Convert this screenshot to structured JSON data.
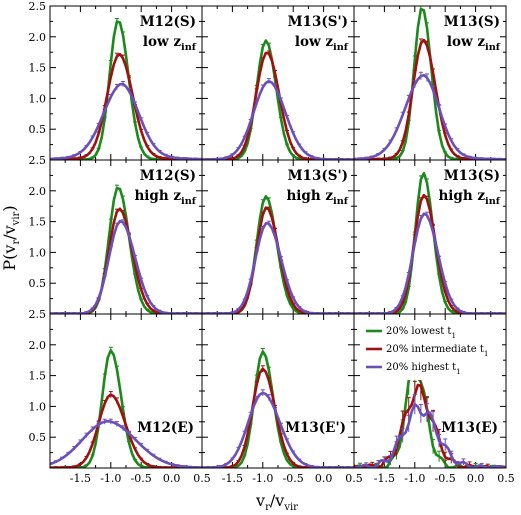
{
  "chart_data": {
    "type": "line",
    "layout": "3x3 grid of panels, shared axes",
    "xlabel": "v_r/v_vir",
    "ylabel": "P(v_r/v_vir)",
    "xlim": [
      -2.0,
      0.5
    ],
    "ylim": [
      0.0,
      2.5
    ],
    "xticks": [
      -1.5,
      -1.0,
      -0.5,
      0.0,
      0.5
    ],
    "yticks": [
      0.5,
      1.0,
      1.5,
      2.0,
      2.5
    ],
    "legend": {
      "placement": "top-right of bottom-right panel",
      "entries": [
        {
          "label": "20% lowest t",
          "sub": "1",
          "color": "#1a8a1a"
        },
        {
          "label": "20% intermediate t",
          "sub": "1",
          "color": "#a01010"
        },
        {
          "label": "20% highest t",
          "sub": "1",
          "color": "#6a50b8"
        }
      ]
    },
    "colors": {
      "lowest": "#1a8a1a",
      "intermediate": "#a01010",
      "highest": "#6a50b8"
    },
    "panels": [
      {
        "row": 0,
        "col": 0,
        "label_lines": [
          {
            "main": "M12(S)",
            "sub": ""
          },
          {
            "main": "low z",
            "sub": "inf"
          }
        ],
        "label_pos": "top",
        "series": [
          {
            "name": "20% lowest t1",
            "peak_x": -0.88,
            "peak_y": 2.25,
            "w_left": 0.14,
            "w_right": 0.17,
            "tail": 0.02,
            "err": 0.05
          },
          {
            "name": "20% intermediate t1",
            "peak_x": -0.86,
            "peak_y": 1.65,
            "w_left": 0.2,
            "w_right": 0.22,
            "tail": 0.07,
            "err": 0.05
          },
          {
            "name": "20% highest t1",
            "peak_x": -0.82,
            "peak_y": 1.12,
            "w_left": 0.3,
            "w_right": 0.28,
            "tail": 0.12,
            "err": 0.04
          }
        ]
      },
      {
        "row": 0,
        "col": 1,
        "label_lines": [
          {
            "main": "M13(S')",
            "sub": ""
          },
          {
            "main": "low z",
            "sub": "inf"
          }
        ],
        "label_pos": "top",
        "series": [
          {
            "name": "20% lowest t1",
            "peak_x": -0.95,
            "peak_y": 1.92,
            "w_left": 0.15,
            "w_right": 0.17,
            "tail": 0.02,
            "err": 0.04
          },
          {
            "name": "20% intermediate t1",
            "peak_x": -0.93,
            "peak_y": 1.72,
            "w_left": 0.18,
            "w_right": 0.2,
            "tail": 0.03,
            "err": 0.04
          },
          {
            "name": "20% highest t1",
            "peak_x": -0.9,
            "peak_y": 1.24,
            "w_left": 0.25,
            "w_right": 0.27,
            "tail": 0.04,
            "err": 0.04
          }
        ]
      },
      {
        "row": 0,
        "col": 2,
        "label_lines": [
          {
            "main": "M13(S)",
            "sub": ""
          },
          {
            "main": "low z",
            "sub": "inf"
          }
        ],
        "label_pos": "top",
        "series": [
          {
            "name": "20% lowest t1",
            "peak_x": -0.88,
            "peak_y": 2.45,
            "w_left": 0.13,
            "w_right": 0.15,
            "tail": 0.03,
            "err": 0.08
          },
          {
            "name": "20% intermediate t1",
            "peak_x": -0.86,
            "peak_y": 1.9,
            "w_left": 0.17,
            "w_right": 0.2,
            "tail": 0.05,
            "err": 0.07
          },
          {
            "name": "20% highest t1",
            "peak_x": -0.86,
            "peak_y": 1.28,
            "w_left": 0.3,
            "w_right": 0.26,
            "tail": 0.1,
            "err": 0.06
          }
        ]
      },
      {
        "row": 1,
        "col": 0,
        "label_lines": [
          {
            "main": "M12(S)",
            "sub": ""
          },
          {
            "main": "high z",
            "sub": "inf"
          }
        ],
        "label_pos": "top",
        "series": [
          {
            "name": "20% lowest t1",
            "peak_x": -0.88,
            "peak_y": 2.05,
            "w_left": 0.15,
            "w_right": 0.18,
            "tail": 0.01,
            "err": 0.05
          },
          {
            "name": "20% intermediate t1",
            "peak_x": -0.86,
            "peak_y": 1.7,
            "w_left": 0.17,
            "w_right": 0.21,
            "tail": 0.01,
            "err": 0.04
          },
          {
            "name": "20% highest t1",
            "peak_x": -0.84,
            "peak_y": 1.5,
            "w_left": 0.19,
            "w_right": 0.24,
            "tail": 0.01,
            "err": 0.04
          }
        ]
      },
      {
        "row": 1,
        "col": 1,
        "label_lines": [
          {
            "main": "M13(S')",
            "sub": ""
          },
          {
            "main": "high z",
            "sub": "inf"
          }
        ],
        "label_pos": "top",
        "series": [
          {
            "name": "20% lowest t1",
            "peak_x": -0.95,
            "peak_y": 1.9,
            "w_left": 0.15,
            "w_right": 0.18,
            "tail": 0.01,
            "err": 0.05
          },
          {
            "name": "20% intermediate t1",
            "peak_x": -0.94,
            "peak_y": 1.72,
            "w_left": 0.16,
            "w_right": 0.2,
            "tail": 0.01,
            "err": 0.04
          },
          {
            "name": "20% highest t1",
            "peak_x": -0.93,
            "peak_y": 1.47,
            "w_left": 0.19,
            "w_right": 0.23,
            "tail": 0.01,
            "err": 0.04
          }
        ]
      },
      {
        "row": 1,
        "col": 2,
        "label_lines": [
          {
            "main": "M13(S)",
            "sub": ""
          },
          {
            "main": "high z",
            "sub": "inf"
          }
        ],
        "label_pos": "top",
        "series": [
          {
            "name": "20% lowest t1",
            "peak_x": -0.86,
            "peak_y": 2.28,
            "w_left": 0.13,
            "w_right": 0.16,
            "tail": 0.01,
            "err": 0.06
          },
          {
            "name": "20% intermediate t1",
            "peak_x": -0.85,
            "peak_y": 1.92,
            "w_left": 0.16,
            "w_right": 0.19,
            "tail": 0.01,
            "err": 0.05
          },
          {
            "name": "20% highest t1",
            "peak_x": -0.84,
            "peak_y": 1.62,
            "w_left": 0.19,
            "w_right": 0.22,
            "tail": 0.01,
            "err": 0.05
          }
        ]
      },
      {
        "row": 2,
        "col": 0,
        "label_lines": [
          {
            "main": "M12(E)",
            "sub": ""
          }
        ],
        "label_pos": "bottom",
        "series": [
          {
            "name": "20% lowest t1",
            "peak_x": -1.0,
            "peak_y": 1.9,
            "w_left": 0.14,
            "w_right": 0.17,
            "tail": 0.01,
            "err": 0.05
          },
          {
            "name": "20% intermediate t1",
            "peak_x": -1.0,
            "peak_y": 1.17,
            "w_left": 0.2,
            "w_right": 0.24,
            "tail": 0.02,
            "err": 0.05
          },
          {
            "name": "20% highest t1",
            "peak_x": -1.05,
            "peak_y": 0.72,
            "w_left": 0.42,
            "w_right": 0.46,
            "tail": 0.04,
            "err": 0.04
          }
        ]
      },
      {
        "row": 2,
        "col": 1,
        "label_lines": [
          {
            "main": "M13(E')",
            "sub": ""
          }
        ],
        "label_pos": "bottom",
        "series": [
          {
            "name": "20% lowest t1",
            "peak_x": -1.0,
            "peak_y": 1.88,
            "w_left": 0.14,
            "w_right": 0.17,
            "tail": 0.01,
            "err": 0.05
          },
          {
            "name": "20% intermediate t1",
            "peak_x": -1.0,
            "peak_y": 1.6,
            "w_left": 0.17,
            "w_right": 0.2,
            "tail": 0.01,
            "err": 0.05
          },
          {
            "name": "20% highest t1",
            "peak_x": -1.0,
            "peak_y": 1.2,
            "w_left": 0.24,
            "w_right": 0.28,
            "tail": 0.02,
            "err": 0.05
          }
        ]
      },
      {
        "row": 2,
        "col": 2,
        "label_lines": [
          {
            "main": "M13(E)",
            "sub": ""
          }
        ],
        "label_pos": "bottom",
        "series": [
          {
            "name": "20% lowest t1",
            "peak_x": -1.0,
            "peak_y": 1.6,
            "w_left": 0.15,
            "w_right": 0.18,
            "tail": 0.04,
            "err": 0.25,
            "noisy": true
          },
          {
            "name": "20% intermediate t1",
            "peak_x": -0.95,
            "peak_y": 1.2,
            "w_left": 0.22,
            "w_right": 0.24,
            "tail": 0.06,
            "err": 0.22,
            "noisy": true
          },
          {
            "name": "20% highest t1",
            "peak_x": -0.92,
            "peak_y": 0.9,
            "w_left": 0.26,
            "w_right": 0.28,
            "tail": 0.08,
            "err": 0.15,
            "noisy": true
          }
        ]
      }
    ]
  }
}
